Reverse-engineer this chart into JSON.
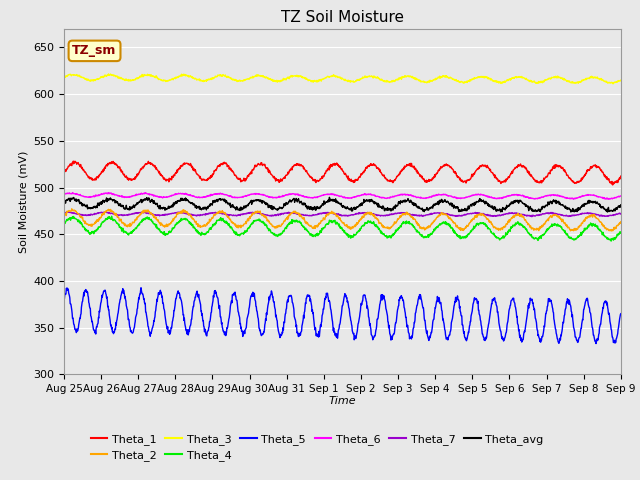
{
  "title": "TZ Soil Moisture",
  "xlabel": "Time",
  "ylabel": "Soil Moisture (mV)",
  "ylim": [
    300,
    670
  ],
  "yticks": [
    300,
    350,
    400,
    450,
    500,
    550,
    600,
    650
  ],
  "background_color": "#e8e8e8",
  "plot_bg_color": "#e8e8e8",
  "legend_label": "TZ_sm",
  "series": {
    "Theta_1": {
      "color": "#ff0000",
      "base": 518,
      "amp": 9,
      "period": 1.0,
      "trend": -4
    },
    "Theta_2": {
      "color": "#ffa500",
      "base": 468,
      "amp": 8,
      "period": 1.0,
      "trend": -6
    },
    "Theta_3": {
      "color": "#ffff00",
      "base": 618,
      "amp": 3,
      "period": 1.0,
      "trend": -3
    },
    "Theta_4": {
      "color": "#00ee00",
      "base": 460,
      "amp": 8,
      "period": 1.0,
      "trend": -8
    },
    "Theta_5": {
      "color": "#0000ff",
      "base": 375,
      "amp": 20,
      "period": 0.5,
      "trend": -12
    },
    "Theta_6": {
      "color": "#ff00ff",
      "base": 492,
      "amp": 2,
      "period": 1.0,
      "trend": -2
    },
    "Theta_7": {
      "color": "#9900cc",
      "base": 472,
      "amp": 1.5,
      "period": 1.0,
      "trend": -1
    },
    "Theta_avg": {
      "color": "#000000",
      "base": 483,
      "amp": 5,
      "period": 1.0,
      "trend": -3
    }
  },
  "xtick_labels": [
    "Aug 25",
    "Aug 26",
    "Aug 27",
    "Aug 28",
    "Aug 29",
    "Aug 30",
    "Aug 31",
    "Sep 1",
    "Sep 2",
    "Sep 3",
    "Sep 4",
    "Sep 5",
    "Sep 6",
    "Sep 7",
    "Sep 8",
    "Sep 9"
  ],
  "n_points": 1440,
  "days": 15,
  "legend_row1": [
    "Theta_1",
    "Theta_2",
    "Theta_3",
    "Theta_4",
    "Theta_5",
    "Theta_6"
  ],
  "legend_row2": [
    "Theta_7",
    "Theta_avg"
  ]
}
